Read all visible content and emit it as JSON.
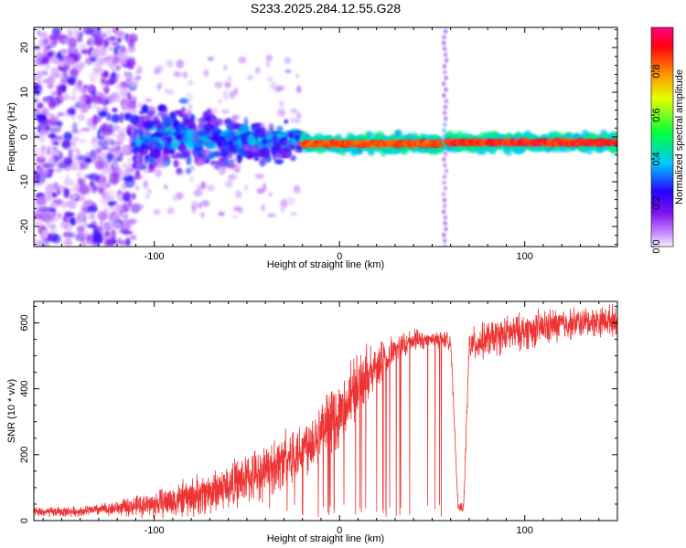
{
  "title": "S233.2025.284.12.55.G28",
  "colors": {
    "line": "#ee3333",
    "frame": "#000000",
    "background": "#ffffff"
  },
  "chart_data": [
    {
      "type": "heatmap",
      "title": "S233.2025.284.12.55.G28",
      "xlabel": "Height of straight line (km)",
      "ylabel": "Frequency (Hz)",
      "xlim": [
        -165,
        150
      ],
      "ylim": [
        -24.5,
        24.5
      ],
      "x_ticks": [
        -100,
        0,
        100
      ],
      "y_ticks": [
        -20,
        -10,
        0,
        10,
        20
      ],
      "colorbar": {
        "label": "Normalized spectral amplitude",
        "range": [
          0,
          1
        ],
        "ticks": [
          0.0,
          0.2,
          0.4,
          0.6,
          0.8
        ],
        "colormap": "rainbow (white-magenta-blue-cyan-green-yellow-red)"
      },
      "features": [
        {
          "name": "diffuse noise",
          "x_range": [
            -165,
            -110
          ],
          "freq_spread": 24,
          "amplitude": 0.25
        },
        {
          "name": "broadened band",
          "x_range": [
            -110,
            -20
          ],
          "freq_spread": 5,
          "amplitude": 0.2
        },
        {
          "name": "narrow strong band",
          "x_range": [
            -20,
            55
          ],
          "center_freq": -1.5,
          "amplitude": 0.9
        },
        {
          "name": "broadband spike",
          "x": 57,
          "freq_spread": 24,
          "amplitude": 0.2
        },
        {
          "name": "narrow strong band",
          "x_range": [
            58,
            150
          ],
          "center_freq": -1.2,
          "amplitude": 0.95
        }
      ]
    },
    {
      "type": "line",
      "xlabel": "Height of straight line (km)",
      "ylabel": "SNR (10 * v/v)",
      "xlim": [
        -165,
        150
      ],
      "ylim": [
        0,
        665
      ],
      "x_ticks": [
        -100,
        0,
        100
      ],
      "y_ticks": [
        0,
        200,
        400,
        600
      ],
      "series": [
        {
          "name": "SNR",
          "color": "#ee3333",
          "x": [
            -165,
            -140,
            -120,
            -100,
            -80,
            -60,
            -40,
            -20,
            0,
            10,
            20,
            30,
            40,
            50,
            55,
            60,
            64,
            67,
            70,
            80,
            90,
            100,
            110,
            120,
            130,
            140,
            150
          ],
          "mean": [
            25,
            28,
            38,
            50,
            70,
            105,
            150,
            220,
            320,
            400,
            470,
            520,
            545,
            550,
            550,
            545,
            40,
            40,
            530,
            550,
            565,
            575,
            585,
            595,
            600,
            605,
            610
          ],
          "spread": [
            15,
            15,
            22,
            40,
            60,
            70,
            80,
            90,
            100,
            90,
            70,
            45,
            35,
            25,
            25,
            25,
            15,
            15,
            50,
            55,
            55,
            55,
            55,
            50,
            45,
            45,
            45
          ]
        }
      ]
    }
  ]
}
